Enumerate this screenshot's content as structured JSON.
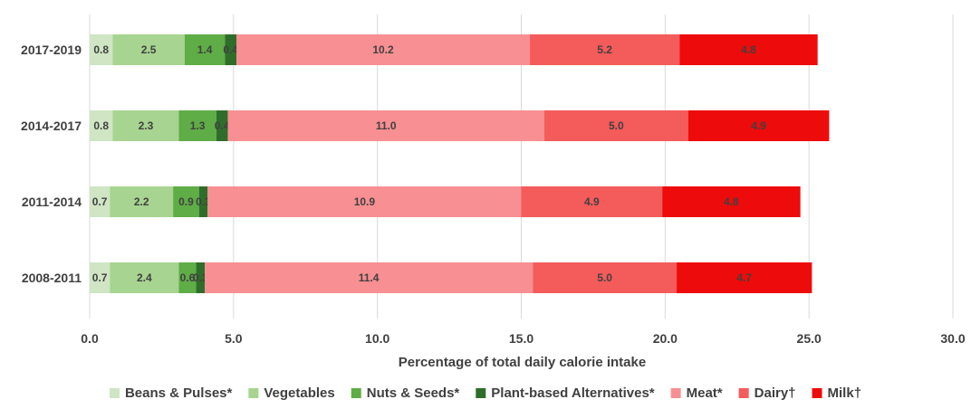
{
  "chart_data": {
    "type": "bar",
    "orientation": "horizontal",
    "stacked": true,
    "categories": [
      "2017-2019",
      "2014-2017",
      "2011-2014",
      "2008-2011"
    ],
    "series": [
      {
        "name": "Beans & Pulses*",
        "color": "#cfe5c3",
        "values": [
          0.8,
          0.8,
          0.7,
          0.7
        ]
      },
      {
        "name": "Vegetables",
        "color": "#a7d490",
        "values": [
          2.5,
          2.3,
          2.2,
          2.4
        ]
      },
      {
        "name": "Nuts & Seeds*",
        "color": "#5fad46",
        "values": [
          1.4,
          1.3,
          0.9,
          0.6
        ]
      },
      {
        "name": "Plant-based Alternatives*",
        "color": "#2f6e2a",
        "values": [
          0.4,
          0.4,
          0.3,
          0.3
        ]
      },
      {
        "name": "Meat*",
        "color": "#f88f92",
        "values": [
          10.2,
          11.0,
          10.9,
          11.4
        ]
      },
      {
        "name": "Dairy†",
        "color": "#f45b5b",
        "values": [
          5.2,
          5.0,
          4.9,
          5.0
        ]
      },
      {
        "name": "Milk†",
        "color": "#ee0b0b",
        "values": [
          4.8,
          4.9,
          4.8,
          4.7
        ]
      }
    ],
    "value_labels": [
      [
        "0.8",
        "2.5",
        "1.4",
        "0.4",
        "10.2",
        "5.2",
        "4.8"
      ],
      [
        "0.8",
        "2.3",
        "1.3",
        "0.4",
        "11.0",
        "5.0",
        "4.9"
      ],
      [
        "0.7",
        "2.2",
        "0.9",
        "0.3",
        "10.9",
        "4.9",
        "4.8"
      ],
      [
        "0.7",
        "2.4",
        "0.6",
        "0.3",
        "11.4",
        "5.0",
        "4.7"
      ]
    ],
    "xlabel": "Percentage of total daily calorie intake",
    "xlim": [
      0,
      30
    ],
    "xticks": [
      0,
      5,
      10,
      15,
      20,
      25,
      30
    ],
    "xtick_labels": [
      "0.0",
      "5.0",
      "10.0",
      "15.0",
      "20.0",
      "25.0",
      "30.0"
    ],
    "grid": true,
    "legend_position": "bottom"
  }
}
